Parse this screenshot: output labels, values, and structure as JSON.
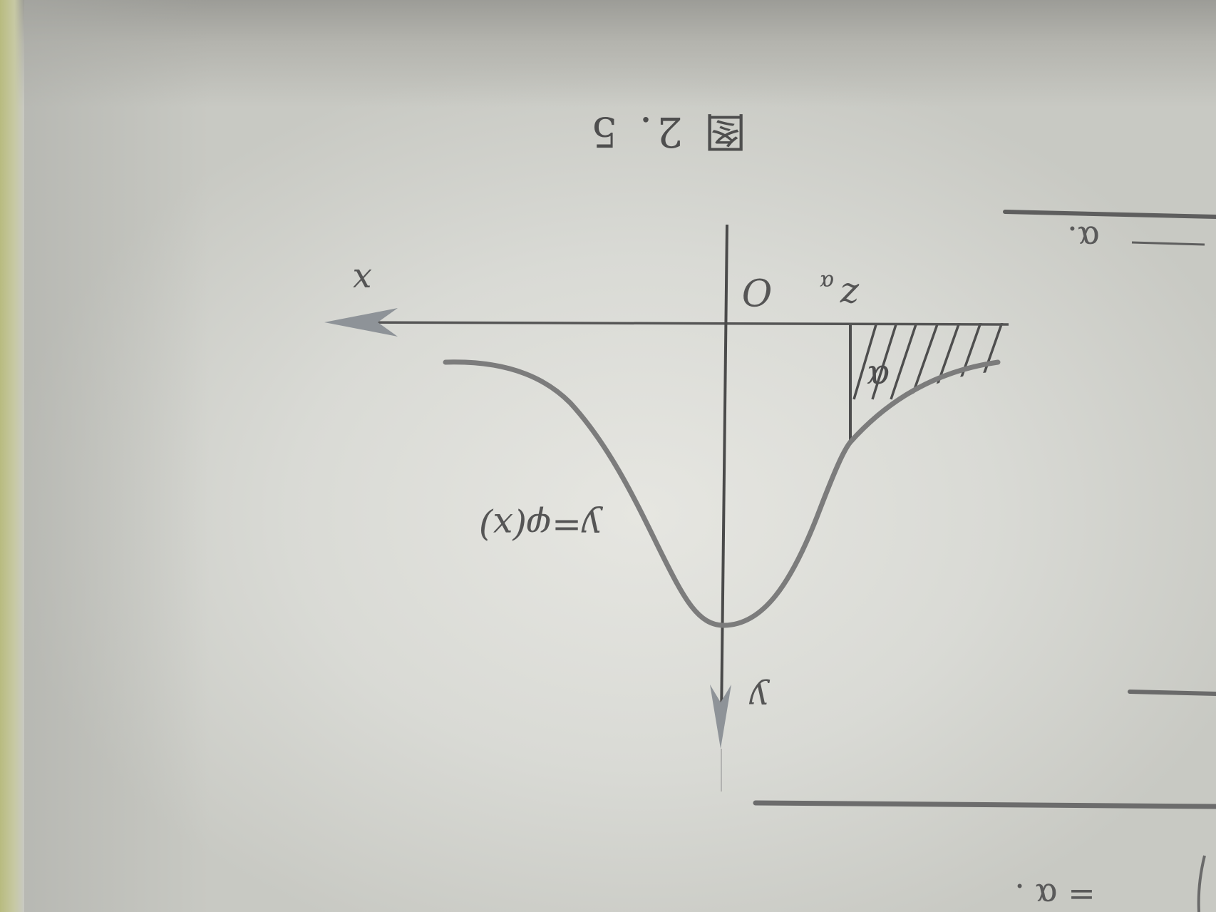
{
  "figure": {
    "caption": "图 2. 5",
    "x_axis_label": "x",
    "y_axis_label": "y",
    "origin_label": "O",
    "critical_point_label": "z",
    "critical_point_subscript": "α",
    "shaded_area_label": "α",
    "curve_label": "y=φ(x)",
    "orientation": "rotated 180°"
  },
  "margin_fragments": {
    "top_right_text": "α.",
    "bottom_right_text": "= α ."
  },
  "colors": {
    "paper": "#d9dad5",
    "ink": "#4e4e4e",
    "curve": "#7c7c7c",
    "arrow": "#8e9398"
  }
}
